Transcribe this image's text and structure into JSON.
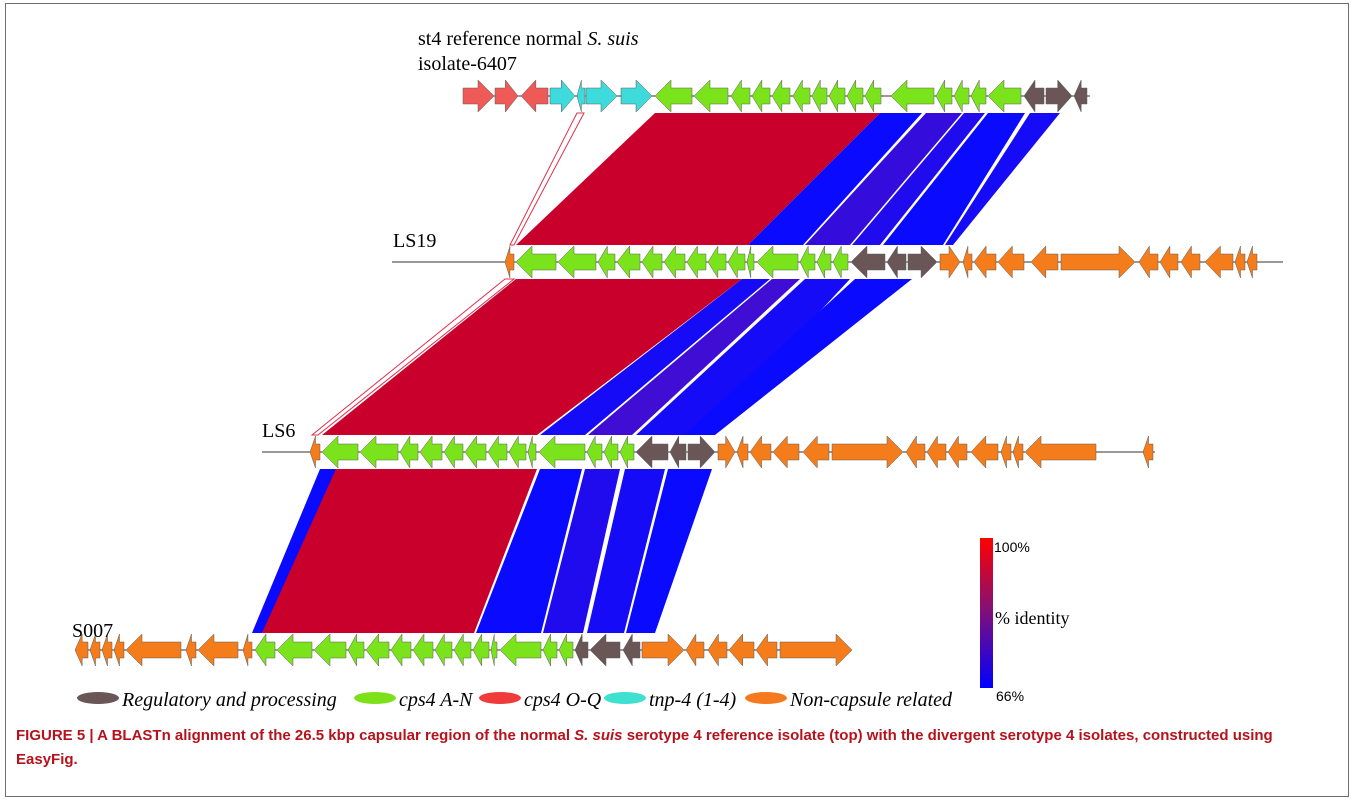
{
  "tracks": [
    {
      "id": "ref",
      "label_lines": [
        "st4 reference normal ",
        "S. suis",
        "isolate-6407"
      ],
      "line": [
        463,
        1090
      ],
      "genes": [
        {
          "x1": 463,
          "x2": 494,
          "dir": 1,
          "cat": "cps_oq"
        },
        {
          "x1": 495,
          "x2": 518,
          "dir": 1,
          "cat": "cps_oq"
        },
        {
          "x1": 521,
          "x2": 548,
          "dir": -1,
          "cat": "cps_oq"
        },
        {
          "x1": 550,
          "x2": 575,
          "dir": 1,
          "cat": "tnp"
        },
        {
          "x1": 577,
          "x2": 585,
          "dir": -1,
          "cat": "tnp"
        },
        {
          "x1": 586,
          "x2": 617,
          "dir": 1,
          "cat": "tnp"
        },
        {
          "x1": 621,
          "x2": 652,
          "dir": 1,
          "cat": "tnp"
        },
        {
          "x1": 655,
          "x2": 692,
          "dir": -1,
          "cat": "cps_an"
        },
        {
          "x1": 694,
          "x2": 728,
          "dir": -1,
          "cat": "cps_an"
        },
        {
          "x1": 731,
          "x2": 750,
          "dir": -1,
          "cat": "cps_an"
        },
        {
          "x1": 752,
          "x2": 770,
          "dir": -1,
          "cat": "cps_an"
        },
        {
          "x1": 772,
          "x2": 790,
          "dir": -1,
          "cat": "cps_an"
        },
        {
          "x1": 793,
          "x2": 810,
          "dir": -1,
          "cat": "cps_an"
        },
        {
          "x1": 812,
          "x2": 827,
          "dir": -1,
          "cat": "cps_an"
        },
        {
          "x1": 829,
          "x2": 845,
          "dir": -1,
          "cat": "cps_an"
        },
        {
          "x1": 847,
          "x2": 863,
          "dir": -1,
          "cat": "cps_an"
        },
        {
          "x1": 865,
          "x2": 881,
          "dir": -1,
          "cat": "cps_an"
        },
        {
          "x1": 891,
          "x2": 934,
          "dir": -1,
          "cat": "cps_an"
        },
        {
          "x1": 936,
          "x2": 952,
          "dir": -1,
          "cat": "cps_an"
        },
        {
          "x1": 954,
          "x2": 969,
          "dir": -1,
          "cat": "cps_an"
        },
        {
          "x1": 971,
          "x2": 986,
          "dir": -1,
          "cat": "cps_an"
        },
        {
          "x1": 988,
          "x2": 1021,
          "dir": -1,
          "cat": "cps_an"
        },
        {
          "x1": 1024,
          "x2": 1044,
          "dir": -1,
          "cat": "reg"
        },
        {
          "x1": 1046,
          "x2": 1072,
          "dir": 1,
          "cat": "reg"
        },
        {
          "x1": 1074,
          "x2": 1087,
          "dir": -1,
          "cat": "reg"
        }
      ]
    },
    {
      "id": "ls19",
      "label_lines": [
        "LS19"
      ],
      "line": [
        392,
        1283
      ],
      "genes": [
        {
          "x1": 505,
          "x2": 514,
          "dir": -1,
          "cat": "noncap"
        },
        {
          "x1": 516,
          "x2": 556,
          "dir": -1,
          "cat": "cps_an"
        },
        {
          "x1": 558,
          "x2": 596,
          "dir": -1,
          "cat": "cps_an"
        },
        {
          "x1": 598,
          "x2": 615,
          "dir": -1,
          "cat": "cps_an"
        },
        {
          "x1": 617,
          "x2": 640,
          "dir": -1,
          "cat": "cps_an"
        },
        {
          "x1": 642,
          "x2": 662,
          "dir": -1,
          "cat": "cps_an"
        },
        {
          "x1": 664,
          "x2": 685,
          "dir": -1,
          "cat": "cps_an"
        },
        {
          "x1": 687,
          "x2": 706,
          "dir": -1,
          "cat": "cps_an"
        },
        {
          "x1": 708,
          "x2": 726,
          "dir": -1,
          "cat": "cps_an"
        },
        {
          "x1": 728,
          "x2": 745,
          "dir": -1,
          "cat": "cps_an"
        },
        {
          "x1": 747,
          "x2": 754,
          "dir": -1,
          "cat": "cps_an"
        },
        {
          "x1": 757,
          "x2": 798,
          "dir": -1,
          "cat": "cps_an"
        },
        {
          "x1": 800,
          "x2": 815,
          "dir": -1,
          "cat": "cps_an"
        },
        {
          "x1": 817,
          "x2": 831,
          "dir": -1,
          "cat": "cps_an"
        },
        {
          "x1": 833,
          "x2": 848,
          "dir": -1,
          "cat": "cps_an"
        },
        {
          "x1": 851,
          "x2": 885,
          "dir": -1,
          "cat": "reg"
        },
        {
          "x1": 887,
          "x2": 906,
          "dir": -1,
          "cat": "reg"
        },
        {
          "x1": 908,
          "x2": 937,
          "dir": 1,
          "cat": "reg"
        },
        {
          "x1": 940,
          "x2": 960,
          "dir": 1,
          "cat": "noncap"
        },
        {
          "x1": 963,
          "x2": 972,
          "dir": -1,
          "cat": "noncap"
        },
        {
          "x1": 974,
          "x2": 996,
          "dir": -1,
          "cat": "noncap"
        },
        {
          "x1": 998,
          "x2": 1024,
          "dir": -1,
          "cat": "noncap"
        },
        {
          "x1": 1031,
          "x2": 1058,
          "dir": -1,
          "cat": "noncap"
        },
        {
          "x1": 1061,
          "x2": 1135,
          "dir": 1,
          "cat": "noncap"
        },
        {
          "x1": 1139,
          "x2": 1158,
          "dir": -1,
          "cat": "noncap"
        },
        {
          "x1": 1160,
          "x2": 1178,
          "dir": -1,
          "cat": "noncap"
        },
        {
          "x1": 1181,
          "x2": 1200,
          "dir": -1,
          "cat": "noncap"
        },
        {
          "x1": 1205,
          "x2": 1233,
          "dir": -1,
          "cat": "noncap"
        },
        {
          "x1": 1235,
          "x2": 1245,
          "dir": -1,
          "cat": "noncap"
        },
        {
          "x1": 1247,
          "x2": 1257,
          "dir": -1,
          "cat": "noncap"
        }
      ]
    },
    {
      "id": "ls6",
      "label_lines": [
        "LS6"
      ],
      "line": [
        262,
        1155
      ],
      "genes": [
        {
          "x1": 310,
          "x2": 320,
          "dir": -1,
          "cat": "noncap"
        },
        {
          "x1": 322,
          "x2": 358,
          "dir": -1,
          "cat": "cps_an"
        },
        {
          "x1": 360,
          "x2": 398,
          "dir": -1,
          "cat": "cps_an"
        },
        {
          "x1": 400,
          "x2": 418,
          "dir": -1,
          "cat": "cps_an"
        },
        {
          "x1": 420,
          "x2": 442,
          "dir": -1,
          "cat": "cps_an"
        },
        {
          "x1": 444,
          "x2": 463,
          "dir": -1,
          "cat": "cps_an"
        },
        {
          "x1": 465,
          "x2": 486,
          "dir": -1,
          "cat": "cps_an"
        },
        {
          "x1": 488,
          "x2": 507,
          "dir": -1,
          "cat": "cps_an"
        },
        {
          "x1": 509,
          "x2": 526,
          "dir": -1,
          "cat": "cps_an"
        },
        {
          "x1": 528,
          "x2": 536,
          "dir": -1,
          "cat": "cps_an"
        },
        {
          "x1": 539,
          "x2": 585,
          "dir": -1,
          "cat": "cps_an"
        },
        {
          "x1": 587,
          "x2": 602,
          "dir": -1,
          "cat": "cps_an"
        },
        {
          "x1": 604,
          "x2": 618,
          "dir": -1,
          "cat": "cps_an"
        },
        {
          "x1": 620,
          "x2": 634,
          "dir": -1,
          "cat": "cps_an"
        },
        {
          "x1": 636,
          "x2": 668,
          "dir": -1,
          "cat": "reg"
        },
        {
          "x1": 670,
          "x2": 686,
          "dir": -1,
          "cat": "reg"
        },
        {
          "x1": 688,
          "x2": 715,
          "dir": 1,
          "cat": "reg"
        },
        {
          "x1": 718,
          "x2": 735,
          "dir": 1,
          "cat": "noncap"
        },
        {
          "x1": 737,
          "x2": 748,
          "dir": -1,
          "cat": "noncap"
        },
        {
          "x1": 750,
          "x2": 771,
          "dir": -1,
          "cat": "noncap"
        },
        {
          "x1": 773,
          "x2": 799,
          "dir": -1,
          "cat": "noncap"
        },
        {
          "x1": 803,
          "x2": 829,
          "dir": -1,
          "cat": "noncap"
        },
        {
          "x1": 832,
          "x2": 903,
          "dir": 1,
          "cat": "noncap"
        },
        {
          "x1": 906,
          "x2": 925,
          "dir": -1,
          "cat": "noncap"
        },
        {
          "x1": 927,
          "x2": 946,
          "dir": -1,
          "cat": "noncap"
        },
        {
          "x1": 948,
          "x2": 967,
          "dir": -1,
          "cat": "noncap"
        },
        {
          "x1": 971,
          "x2": 998,
          "dir": -1,
          "cat": "noncap"
        },
        {
          "x1": 1001,
          "x2": 1011,
          "dir": -1,
          "cat": "noncap"
        },
        {
          "x1": 1013,
          "x2": 1023,
          "dir": -1,
          "cat": "noncap"
        },
        {
          "x1": 1025,
          "x2": 1096,
          "dir": -1,
          "cat": "noncap"
        },
        {
          "x1": 1143,
          "x2": 1153,
          "dir": -1,
          "cat": "noncap"
        }
      ]
    },
    {
      "id": "s007",
      "label_lines": [
        "S007"
      ],
      "line": [
        75,
        852
      ],
      "genes": [
        {
          "x1": 75,
          "x2": 88,
          "dir": -1,
          "cat": "noncap"
        },
        {
          "x1": 90,
          "x2": 100,
          "dir": -1,
          "cat": "noncap"
        },
        {
          "x1": 102,
          "x2": 112,
          "dir": -1,
          "cat": "noncap"
        },
        {
          "x1": 114,
          "x2": 124,
          "dir": -1,
          "cat": "noncap"
        },
        {
          "x1": 126,
          "x2": 181,
          "dir": -1,
          "cat": "noncap"
        },
        {
          "x1": 186,
          "x2": 196,
          "dir": -1,
          "cat": "noncap"
        },
        {
          "x1": 198,
          "x2": 238,
          "dir": -1,
          "cat": "noncap"
        },
        {
          "x1": 243,
          "x2": 252,
          "dir": -1,
          "cat": "noncap"
        },
        {
          "x1": 255,
          "x2": 275,
          "dir": -1,
          "cat": "cps_an"
        },
        {
          "x1": 277,
          "x2": 312,
          "dir": -1,
          "cat": "cps_an"
        },
        {
          "x1": 314,
          "x2": 346,
          "dir": -1,
          "cat": "cps_an"
        },
        {
          "x1": 348,
          "x2": 364,
          "dir": -1,
          "cat": "cps_an"
        },
        {
          "x1": 366,
          "x2": 389,
          "dir": -1,
          "cat": "cps_an"
        },
        {
          "x1": 391,
          "x2": 411,
          "dir": -1,
          "cat": "cps_an"
        },
        {
          "x1": 413,
          "x2": 433,
          "dir": -1,
          "cat": "cps_an"
        },
        {
          "x1": 435,
          "x2": 452,
          "dir": -1,
          "cat": "cps_an"
        },
        {
          "x1": 454,
          "x2": 471,
          "dir": -1,
          "cat": "cps_an"
        },
        {
          "x1": 473,
          "x2": 489,
          "dir": -1,
          "cat": "cps_an"
        },
        {
          "x1": 491,
          "x2": 497,
          "dir": -1,
          "cat": "cps_an"
        },
        {
          "x1": 500,
          "x2": 541,
          "dir": -1,
          "cat": "cps_an"
        },
        {
          "x1": 543,
          "x2": 557,
          "dir": -1,
          "cat": "cps_an"
        },
        {
          "x1": 559,
          "x2": 573,
          "dir": -1,
          "cat": "cps_an"
        },
        {
          "x1": 575,
          "x2": 588,
          "dir": -1,
          "cat": "reg"
        },
        {
          "x1": 590,
          "x2": 620,
          "dir": -1,
          "cat": "reg"
        },
        {
          "x1": 623,
          "x2": 640,
          "dir": -1,
          "cat": "reg"
        },
        {
          "x1": 642,
          "x2": 684,
          "dir": 1,
          "cat": "noncap"
        },
        {
          "x1": 686,
          "x2": 704,
          "dir": -1,
          "cat": "noncap"
        },
        {
          "x1": 708,
          "x2": 727,
          "dir": -1,
          "cat": "noncap"
        },
        {
          "x1": 729,
          "x2": 754,
          "dir": -1,
          "cat": "noncap"
        },
        {
          "x1": 756,
          "x2": 777,
          "dir": -1,
          "cat": "noncap"
        },
        {
          "x1": 780,
          "x2": 852,
          "dir": 1,
          "cat": "noncap"
        }
      ]
    }
  ],
  "alignments": [
    {
      "pair": "ref-ls19",
      "top": [
        655,
        880
      ],
      "bottom": [
        516,
        748
      ],
      "identity": 1.0
    },
    {
      "pair": "ref-ls19",
      "top": [
        880,
        922
      ],
      "bottom": [
        748,
        803
      ],
      "identity": 0.0
    },
    {
      "pair": "ref-ls19",
      "top": [
        926,
        962
      ],
      "bottom": [
        805,
        850
      ],
      "identity": 0.2
    },
    {
      "pair": "ref-ls19",
      "top": [
        964,
        985
      ],
      "bottom": [
        852,
        880
      ],
      "identity": 0.1
    },
    {
      "pair": "ref-ls19",
      "top": [
        988,
        1025
      ],
      "bottom": [
        883,
        943
      ],
      "identity": 0.0
    },
    {
      "pair": "ref-ls19",
      "top": [
        1030,
        1060
      ],
      "bottom": [
        945,
        953
      ],
      "identity": 0.05
    },
    {
      "pair": "ref-ls19",
      "top": [
        577,
        584
      ],
      "bottom": [
        510,
        514
      ],
      "identity": 0.95
    },
    {
      "pair": "ls19-ls6",
      "top": [
        516,
        742
      ],
      "bottom": [
        322,
        537
      ],
      "identity": 1.0
    },
    {
      "pair": "ls19-ls6",
      "top": [
        742,
        770
      ],
      "bottom": [
        540,
        585
      ],
      "identity": 0.05
    },
    {
      "pair": "ls19-ls6",
      "top": [
        772,
        800
      ],
      "bottom": [
        588,
        632
      ],
      "identity": 0.25
    },
    {
      "pair": "ls19-ls6",
      "top": [
        805,
        850
      ],
      "bottom": [
        636,
        705
      ],
      "identity": 0.05
    },
    {
      "pair": "ls19-ls6",
      "top": [
        855,
        912
      ],
      "bottom": [
        684,
        715
      ],
      "identity": 0.0
    },
    {
      "pair": "ls19-ls6",
      "top": [
        505,
        514
      ],
      "bottom": [
        312,
        318
      ],
      "identity": 0.95
    },
    {
      "pair": "ls6-s007",
      "top": [
        322,
        537
      ],
      "bottom": [
        262,
        474
      ],
      "identity": 1.0
    },
    {
      "pair": "ls6-s007",
      "top": [
        320,
        336
      ],
      "bottom": [
        252,
        262
      ],
      "identity": 0.0
    },
    {
      "pair": "ls6-s007",
      "top": [
        540,
        582
      ],
      "bottom": [
        476,
        541
      ],
      "identity": 0.0
    },
    {
      "pair": "ls6-s007",
      "top": [
        585,
        620
      ],
      "bottom": [
        543,
        583
      ],
      "identity": 0.1
    },
    {
      "pair": "ls6-s007",
      "top": [
        625,
        665
      ],
      "bottom": [
        587,
        624
      ],
      "identity": 0.05
    },
    {
      "pair": "ls6-s007",
      "top": [
        668,
        712
      ],
      "bottom": [
        626,
        655
      ],
      "identity": 0.0
    }
  ],
  "identity_scale": {
    "max_label": "100%",
    "title": "% identity",
    "min_label": "66%",
    "color_max": "#e0001b",
    "color_min": "#0a0aff"
  },
  "legend": [
    {
      "cat": "reg",
      "label": "Regulatory and processing",
      "color": "#6b5657"
    },
    {
      "cat": "cps_an",
      "label": "cps4 A-N",
      "color": "#7de11a"
    },
    {
      "cat": "cps_oq",
      "label": "cps4 O-Q",
      "color": "#f03b3b"
    },
    {
      "cat": "tnp",
      "label": "tnp-4 (1-4)",
      "color": "#3ee0d0"
    },
    {
      "cat": "noncap",
      "label": "Non-capsule related",
      "color": "#f57a1e"
    }
  ],
  "colors": {
    "cps_oq": "#ef5a59",
    "tnp": "#3ddbdb",
    "cps_an": "#7ae31c",
    "reg": "#6b5657",
    "noncap": "#f57c1a",
    "high_identity": "#c9002c"
  },
  "caption": {
    "prefix": "FIGURE 5 | A BLASTn alignment of the 26.5 kbp capsular region of the normal ",
    "species": "S. suis",
    "suffix": " serotype 4 reference isolate (top) with the divergent serotype 4 isolates, constructed using EasyFig."
  }
}
